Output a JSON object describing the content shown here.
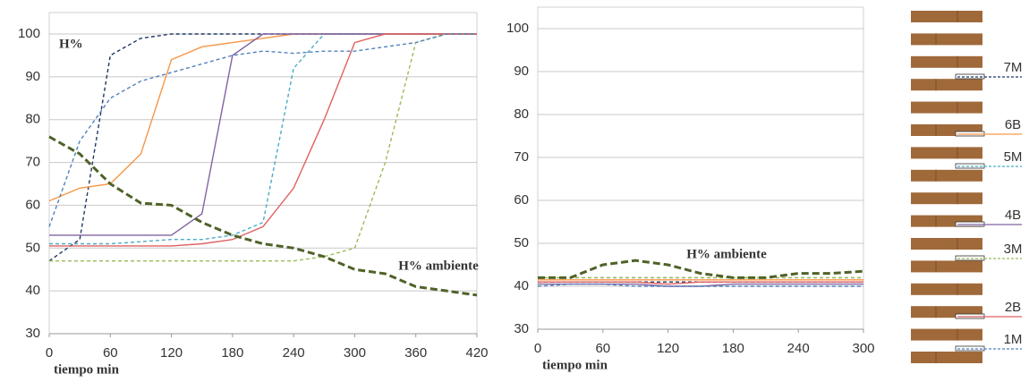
{
  "chart_data": [
    {
      "type": "line",
      "title": "H%",
      "xlabel": "tiempo min",
      "x": [
        0,
        30,
        60,
        90,
        120,
        150,
        180,
        210,
        240,
        270,
        300,
        330,
        360,
        390,
        420
      ],
      "xlim": [
        0,
        420
      ],
      "xticks": [
        0,
        60,
        120,
        180,
        240,
        300,
        360,
        420
      ],
      "ylim": [
        30,
        105
      ],
      "yticks": [
        30,
        40,
        50,
        60,
        70,
        80,
        90,
        100
      ],
      "grid": true,
      "series": [
        {
          "name": "7M",
          "color": "#1f3864",
          "dashed": true,
          "values": [
            47,
            52,
            95,
            99,
            100,
            100,
            100,
            100,
            100,
            100,
            100,
            100,
            100,
            100,
            100
          ]
        },
        {
          "name": "6B",
          "color": "#f79646",
          "dashed": false,
          "values": [
            61,
            64,
            65,
            72,
            94,
            97,
            98,
            99,
            100,
            100,
            100,
            100,
            100,
            100,
            100
          ]
        },
        {
          "name": "5M",
          "color": "#4bacc6",
          "dashed": true,
          "values": [
            51,
            51,
            51,
            51.5,
            52,
            52,
            53,
            56,
            92,
            100,
            100,
            100,
            100,
            100,
            100
          ]
        },
        {
          "name": "4B",
          "color": "#8064a2",
          "dashed": false,
          "values": [
            53,
            53,
            53,
            53,
            53,
            58,
            95,
            100,
            100,
            100,
            100,
            100,
            100,
            100,
            100
          ]
        },
        {
          "name": "3M",
          "color": "#9bbb59",
          "dashed": true,
          "values": [
            47,
            47,
            47,
            47,
            47,
            47,
            47,
            47,
            47,
            48,
            50,
            70,
            98,
            100,
            100
          ]
        },
        {
          "name": "2B",
          "color": "#e06060",
          "dashed": false,
          "values": [
            50.5,
            50.5,
            50.5,
            50.5,
            50.5,
            51,
            52,
            55,
            64,
            80,
            98,
            100,
            100,
            100,
            100
          ]
        },
        {
          "name": "1M",
          "color": "#4f81bd",
          "dashed": true,
          "values": [
            55,
            75,
            85,
            89,
            91,
            93,
            95,
            96,
            95.5,
            96,
            96,
            97,
            98,
            100,
            100
          ]
        },
        {
          "name": "H% ambiente",
          "color": "#4f6228",
          "dashed": true,
          "thick": true,
          "values": [
            76,
            72,
            65,
            60.5,
            60,
            56,
            53,
            51,
            50,
            48,
            45,
            44,
            41,
            40,
            39
          ]
        }
      ]
    },
    {
      "type": "line",
      "xlabel": "tiempo min",
      "x": [
        0,
        30,
        60,
        90,
        120,
        150,
        180,
        210,
        240,
        270,
        300
      ],
      "xlim": [
        0,
        300
      ],
      "xticks": [
        0,
        60,
        120,
        180,
        240,
        300
      ],
      "ylim": [
        30,
        105
      ],
      "yticks": [
        30,
        40,
        50,
        60,
        70,
        80,
        90,
        100
      ],
      "grid": true,
      "series": [
        {
          "name": "7M",
          "color": "#1f3864",
          "dashed": true,
          "values": [
            41,
            41,
            41,
            41,
            41,
            41,
            41,
            41,
            41,
            41,
            41
          ]
        },
        {
          "name": "6B",
          "color": "#f79646",
          "dashed": false,
          "values": [
            41.5,
            41.5,
            41.5,
            41.5,
            41.5,
            41.5,
            41.5,
            41.5,
            41.5,
            41.5,
            41.5
          ]
        },
        {
          "name": "5M",
          "color": "#4bacc6",
          "dashed": true,
          "values": [
            42,
            42,
            42,
            42,
            42,
            42,
            42,
            42,
            42,
            42,
            42
          ]
        },
        {
          "name": "4B",
          "color": "#8064a2",
          "dashed": false,
          "values": [
            40.5,
            40.5,
            40.5,
            40.5,
            40,
            40,
            40.5,
            40.5,
            40.5,
            40.5,
            40.5
          ]
        },
        {
          "name": "3M",
          "color": "#9bbb59",
          "dashed": true,
          "values": [
            42,
            42,
            42,
            42,
            42,
            42,
            42,
            42,
            42,
            42,
            42
          ]
        },
        {
          "name": "2B",
          "color": "#e06060",
          "dashed": false,
          "values": [
            41,
            41,
            41,
            41,
            40.5,
            41,
            41,
            41,
            41,
            41,
            41
          ]
        },
        {
          "name": "1M",
          "color": "#4f81bd",
          "dashed": true,
          "values": [
            40,
            40.5,
            40.5,
            40,
            40,
            40,
            40,
            40,
            40,
            40,
            40
          ]
        },
        {
          "name": "H% ambiente",
          "color": "#4f6228",
          "dashed": true,
          "thick": true,
          "values": [
            42,
            42,
            45,
            46,
            45,
            43,
            42,
            42,
            43,
            43,
            43.5
          ]
        }
      ]
    }
  ]
}
